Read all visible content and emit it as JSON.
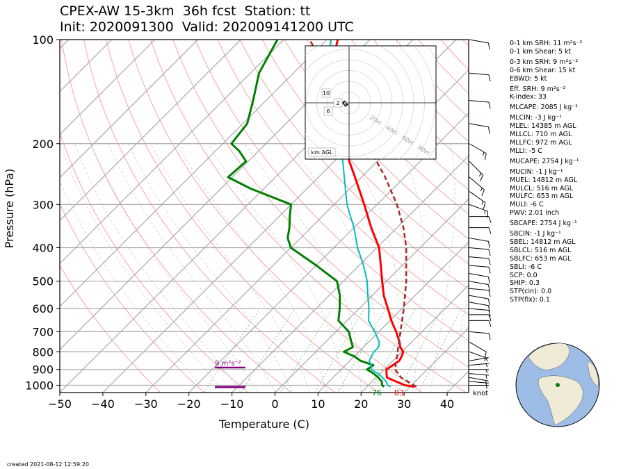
{
  "header": {
    "title_line1": "CPEX-AW 15-3km  36h fcst  Station: tt",
    "title_line2": "Init: 2020091300  Valid: 202009141200 UTC"
  },
  "footer": {
    "created": "created 2021-08-12 12:59:20"
  },
  "parameters": [
    {
      "label": "0-1 km SRH: 11 m²s⁻²",
      "gap": false
    },
    {
      "label": "0-1 km Shear: 5 kt",
      "gap": false
    },
    {
      "label": "0-3 km SRH: 9 m²s⁻²",
      "gap": true
    },
    {
      "label": "0-6 km Shear: 15 kt",
      "gap": false
    },
    {
      "label": "EBWD: 5 kt",
      "gap": false
    },
    {
      "label": "Eff. SRH: 9 m²s⁻²",
      "gap": true
    },
    {
      "label": "K-index: 33",
      "gap": false
    },
    {
      "label": "MLCAPE: 2085 J kg⁻¹",
      "gap": true
    },
    {
      "label": "MLCIN: -3 J kg⁻¹",
      "gap": true
    },
    {
      "label": "MLEL: 14385 m AGL",
      "gap": false
    },
    {
      "label": "MLLCL: 710 m AGL",
      "gap": false
    },
    {
      "label": "MLLFC: 972 m AGL",
      "gap": false
    },
    {
      "label": "MLLI: -5 C",
      "gap": false
    },
    {
      "label": "MUCAPE: 2754 J kg⁻¹",
      "gap": true
    },
    {
      "label": "MUCIN: -1 J kg⁻¹",
      "gap": true
    },
    {
      "label": "MUEL: 14812 m AGL",
      "gap": false
    },
    {
      "label": "MULCL: 516 m AGL",
      "gap": false
    },
    {
      "label": "MULFC: 653 m AGL",
      "gap": false
    },
    {
      "label": "MULI: -6 C",
      "gap": false
    },
    {
      "label": "PWV: 2.01 inch",
      "gap": false
    },
    {
      "label": "SBCAPE: 2754 J kg⁻¹",
      "gap": true
    },
    {
      "label": "SBCIN: -1 J kg⁻¹",
      "gap": true
    },
    {
      "label": "SBEL: 14812 m AGL",
      "gap": false
    },
    {
      "label": "SBLCL: 516 m AGL",
      "gap": false
    },
    {
      "label": "SBLFC: 653 m AGL",
      "gap": false
    },
    {
      "label": "SBLI: -6 C",
      "gap": false
    },
    {
      "label": "SCP: 0.0",
      "gap": false
    },
    {
      "label": "SHIP: 0.3",
      "gap": false
    },
    {
      "label": "STP(cin): 0.0",
      "gap": false
    },
    {
      "label": "STP(fix): 0.1",
      "gap": false
    }
  ],
  "chart_data": {
    "type": "line",
    "subtype": "skew-T log-P",
    "xlabel": "Temperature (C)",
    "ylabel": "Pressure (hPa)",
    "xlim": [
      -50,
      45
    ],
    "ylim": [
      1050,
      100
    ],
    "y_scale": "log",
    "x_ticks": [
      -50,
      -40,
      -30,
      -20,
      -10,
      0,
      10,
      20,
      30,
      40
    ],
    "y_ticks": [
      100,
      200,
      300,
      400,
      500,
      600,
      700,
      800,
      900,
      1000
    ],
    "colors": {
      "temperature": "#ff0000",
      "dewpoint": "#008000",
      "wetbulb": "#00bfbf",
      "parcel": "#a52a2a",
      "srh": "#800080"
    },
    "series": [
      {
        "style": "temperature",
        "points": [
          [
            1010,
            31
          ],
          [
            1000,
            28.5
          ],
          [
            975,
            25.5
          ],
          [
            950,
            22.5
          ],
          [
            925,
            21.5
          ],
          [
            900,
            20.5
          ],
          [
            875,
            21
          ],
          [
            850,
            21.5
          ],
          [
            825,
            21
          ],
          [
            800,
            20.3
          ],
          [
            775,
            18.5
          ],
          [
            750,
            17.2
          ],
          [
            700,
            14.0
          ],
          [
            650,
            10.3
          ],
          [
            600,
            6.7
          ],
          [
            550,
            2.7
          ],
          [
            500,
            -1.0
          ],
          [
            450,
            -5.0
          ],
          [
            400,
            -9.5
          ],
          [
            350,
            -16.0
          ],
          [
            300,
            -23.0
          ],
          [
            250,
            -31.5
          ],
          [
            225,
            -36.5
          ],
          [
            200,
            -41.5
          ],
          [
            175,
            -47.5
          ],
          [
            150,
            -54.0
          ],
          [
            125,
            -61.5
          ],
          [
            100,
            -67.5
          ]
        ]
      },
      {
        "style": "dewpoint",
        "points": [
          [
            1010,
            24
          ],
          [
            1000,
            23.2
          ],
          [
            975,
            22.2
          ],
          [
            950,
            20.5
          ],
          [
            925,
            18.5
          ],
          [
            900,
            16.0
          ],
          [
            875,
            16.5
          ],
          [
            850,
            12.5
          ],
          [
            825,
            10.0
          ],
          [
            800,
            6.5
          ],
          [
            775,
            7.5
          ],
          [
            750,
            6.0
          ],
          [
            700,
            3.0
          ],
          [
            650,
            -2.0
          ],
          [
            600,
            -4.5
          ],
          [
            550,
            -7.5
          ],
          [
            500,
            -11.5
          ],
          [
            450,
            -20.0
          ],
          [
            400,
            -30.0
          ],
          [
            375,
            -33.0
          ],
          [
            350,
            -35.0
          ],
          [
            325,
            -37.5
          ],
          [
            300,
            -40.0
          ],
          [
            270,
            -53.0
          ],
          [
            250,
            -61.0
          ],
          [
            225,
            -60.5
          ],
          [
            210,
            -64.5
          ],
          [
            200,
            -68.0
          ],
          [
            175,
            -69.0
          ],
          [
            150,
            -73.0
          ],
          [
            125,
            -78.0
          ],
          [
            100,
            -81.5
          ]
        ]
      },
      {
        "style": "wetbulb",
        "points": [
          [
            1010,
            25.5
          ],
          [
            1000,
            24.5
          ],
          [
            975,
            23.2
          ],
          [
            950,
            21.5
          ],
          [
            925,
            19.5
          ],
          [
            900,
            17.0
          ],
          [
            875,
            16.0
          ],
          [
            850,
            14.5
          ],
          [
            825,
            14.0
          ],
          [
            800,
            13.5
          ],
          [
            775,
            13.5
          ],
          [
            750,
            12.5
          ],
          [
            700,
            9.0
          ],
          [
            650,
            5.0
          ],
          [
            600,
            2.3
          ],
          [
            550,
            -1.0
          ],
          [
            500,
            -4.5
          ],
          [
            450,
            -9.0
          ],
          [
            400,
            -14.5
          ],
          [
            350,
            -20.0
          ],
          [
            300,
            -27.0
          ],
          [
            250,
            -34.0
          ],
          [
            225,
            -38.0
          ],
          [
            200,
            -43.5
          ],
          [
            175,
            -49.0
          ],
          [
            150,
            -56.0
          ],
          [
            125,
            -63.0
          ],
          [
            100,
            -69.0
          ]
        ]
      },
      {
        "style": "parcel",
        "points": [
          [
            1010,
            31.5
          ],
          [
            950,
            25.8
          ],
          [
            900,
            22.5
          ],
          [
            850,
            20.8
          ],
          [
            800,
            19.0
          ],
          [
            700,
            15.0
          ],
          [
            600,
            10.4
          ],
          [
            500,
            4.6
          ],
          [
            400,
            -3.2
          ],
          [
            350,
            -8.5
          ],
          [
            300,
            -15.4
          ],
          [
            250,
            -24.5
          ],
          [
            200,
            -36.5
          ],
          [
            150,
            -52.5
          ],
          [
            100,
            -74.0
          ]
        ]
      }
    ],
    "surface_labels": {
      "dewpoint": "76",
      "temperature": "83"
    },
    "srh_label": "9 m²s⁻²",
    "barb_unit": "knot",
    "wind_barbs": [
      {
        "p": 1000,
        "dir": 90,
        "spd": 5
      },
      {
        "p": 975,
        "dir": 95,
        "spd": 5
      },
      {
        "p": 950,
        "dir": 100,
        "spd": 5
      },
      {
        "p": 925,
        "dir": 95,
        "spd": 5
      },
      {
        "p": 900,
        "dir": 90,
        "spd": 5
      },
      {
        "p": 875,
        "dir": 85,
        "spd": 5
      },
      {
        "p": 850,
        "dir": 80,
        "spd": 5
      },
      {
        "p": 800,
        "dir": 110,
        "spd": 5
      },
      {
        "p": 750,
        "dir": 120,
        "spd": 10
      },
      {
        "p": 700,
        "dir": 95,
        "spd": 10
      },
      {
        "p": 650,
        "dir": 90,
        "spd": 10
      },
      {
        "p": 625,
        "dir": 90,
        "spd": 10
      },
      {
        "p": 600,
        "dir": 95,
        "spd": 10
      },
      {
        "p": 575,
        "dir": 100,
        "spd": 10
      },
      {
        "p": 550,
        "dir": 100,
        "spd": 10
      },
      {
        "p": 525,
        "dir": 95,
        "spd": 10
      },
      {
        "p": 500,
        "dir": 100,
        "spd": 10
      },
      {
        "p": 475,
        "dir": 100,
        "spd": 10
      },
      {
        "p": 450,
        "dir": 95,
        "spd": 10
      },
      {
        "p": 425,
        "dir": 95,
        "spd": 10
      },
      {
        "p": 400,
        "dir": 95,
        "spd": 10
      },
      {
        "p": 375,
        "dir": 100,
        "spd": 10
      },
      {
        "p": 350,
        "dir": 90,
        "spd": 10
      },
      {
        "p": 325,
        "dir": 90,
        "spd": 10
      },
      {
        "p": 300,
        "dir": 110,
        "spd": 15
      },
      {
        "p": 275,
        "dir": 125,
        "spd": 15
      },
      {
        "p": 250,
        "dir": 130,
        "spd": 15
      },
      {
        "p": 225,
        "dir": 135,
        "spd": 15
      },
      {
        "p": 200,
        "dir": 120,
        "spd": 15
      },
      {
        "p": 175,
        "dir": 100,
        "spd": 10
      },
      {
        "p": 150,
        "dir": 95,
        "spd": 10
      },
      {
        "p": 125,
        "dir": 95,
        "spd": 10
      },
      {
        "p": 100,
        "dir": 100,
        "spd": 10
      }
    ],
    "hodograph": {
      "range_labels": [
        "20kt",
        "40kt",
        "60kt",
        "80kt"
      ],
      "height_labels": [
        "10",
        "6",
        "2"
      ],
      "footer_label": "km AGL",
      "trace_kt": [
        [
          -3,
          1
        ],
        [
          -4,
          1.5
        ],
        [
          -5,
          0.5
        ],
        [
          -5.5,
          0
        ],
        [
          -4,
          -2
        ],
        [
          -3,
          -3
        ],
        [
          -2,
          -1
        ],
        [
          -1,
          -2
        ],
        [
          -3,
          -1
        ]
      ]
    },
    "globe": {
      "station_marker": "station-dot"
    }
  }
}
